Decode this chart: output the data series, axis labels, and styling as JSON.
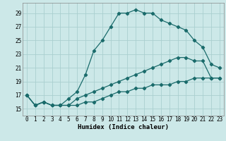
{
  "xlabel": "Humidex (Indice chaleur)",
  "bg_color": "#cce8e8",
  "grid_color": "#aacfcf",
  "line_color": "#1a6b6b",
  "xlim": [
    -0.5,
    23.5
  ],
  "ylim": [
    14.0,
    30.5
  ],
  "yticks": [
    15,
    17,
    19,
    21,
    23,
    25,
    27,
    29
  ],
  "xticks": [
    0,
    1,
    2,
    3,
    4,
    5,
    6,
    7,
    8,
    9,
    10,
    11,
    12,
    13,
    14,
    15,
    16,
    17,
    18,
    19,
    20,
    21,
    22,
    23
  ],
  "curve1_x": [
    0,
    1,
    2,
    3,
    4,
    5,
    6,
    7,
    8,
    9,
    10,
    11,
    12,
    13,
    14,
    15,
    16,
    17,
    18,
    19,
    20,
    21,
    22,
    23
  ],
  "curve1_y": [
    17,
    15.5,
    16,
    15.5,
    15.5,
    16.5,
    17.5,
    20,
    23.5,
    25,
    27,
    29,
    29,
    29.5,
    29,
    29,
    28,
    27.5,
    27,
    26.5,
    25,
    24,
    21.5,
    21
  ],
  "curve2_x": [
    0,
    1,
    2,
    3,
    4,
    5,
    6,
    7,
    8,
    9,
    10,
    11,
    12,
    13,
    14,
    15,
    16,
    17,
    18,
    19,
    20,
    21,
    22,
    23
  ],
  "curve2_y": [
    17,
    15.5,
    16,
    15.5,
    15.5,
    15.5,
    16.5,
    17,
    17.5,
    18,
    18.5,
    19,
    19.5,
    20,
    20.5,
    21,
    21.5,
    22,
    22.5,
    22.5,
    22,
    22,
    19.5,
    19.5
  ],
  "curve3_x": [
    0,
    1,
    2,
    3,
    4,
    5,
    6,
    7,
    8,
    9,
    10,
    11,
    12,
    13,
    14,
    15,
    16,
    17,
    18,
    19,
    20,
    21,
    22,
    23
  ],
  "curve3_y": [
    17,
    15.5,
    16,
    15.5,
    15.5,
    15.5,
    15.5,
    16,
    16,
    16.5,
    17,
    17.5,
    17.5,
    18,
    18,
    18.5,
    18.5,
    18.5,
    19,
    19,
    19.5,
    19.5,
    19.5,
    19.5
  ]
}
